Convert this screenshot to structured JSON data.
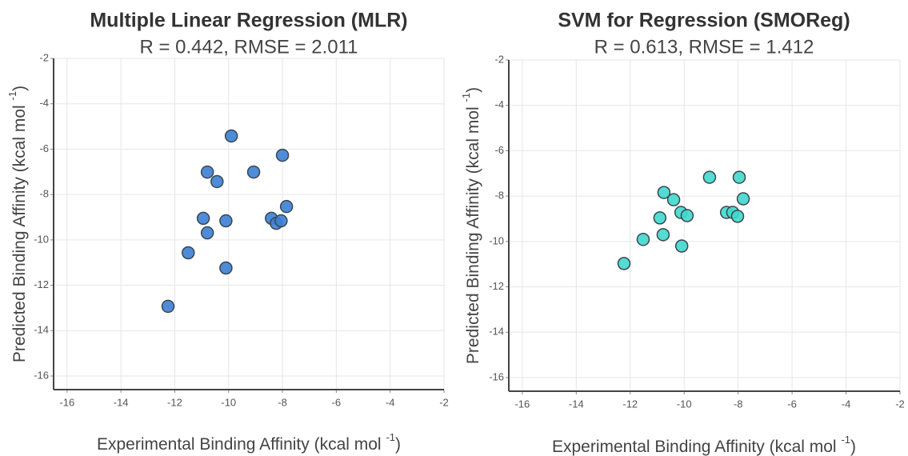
{
  "chart_data": [
    {
      "type": "scatter",
      "title": "Multiple Linear Regression (MLR)",
      "subtitle": "R = 0.442, RMSE = 2.011",
      "xlabel": [
        "Experimental Binding Affinity (kcal mol ",
        "-1",
        ")"
      ],
      "ylabel": [
        "Predicted Binding Affinity (kcal mol ",
        "-1",
        ")"
      ],
      "xlim": [
        -16.5,
        -2
      ],
      "ylim": [
        -16.6,
        -2
      ],
      "xticks": [
        -16,
        -14,
        -12,
        -10,
        -8,
        -6,
        -4,
        -2
      ],
      "yticks": [
        -16,
        -14,
        -12,
        -10,
        -8,
        -6,
        -4,
        -2
      ],
      "grid": true,
      "color": "#3b7fd4",
      "x": [
        -12.25,
        -11.5,
        -10.94,
        -10.79,
        -10.79,
        -10.43,
        -10.1,
        -10.1,
        -9.9,
        -9.07,
        -8.41,
        -8.23,
        -8.05,
        -8.0,
        -7.85
      ],
      "values": [
        -12.93,
        -10.57,
        -9.05,
        -9.69,
        -7.01,
        -7.43,
        -9.16,
        -11.24,
        -5.42,
        -7.01,
        -9.05,
        -9.27,
        -9.16,
        -6.27,
        -8.53
      ]
    },
    {
      "type": "scatter",
      "title": "SVM for Regression (SMOReg)",
      "subtitle": "R = 0.613, RMSE = 1.412",
      "xlabel": [
        "Experimental Binding Affinity (kcal mol ",
        "-1",
        ")"
      ],
      "ylabel": [
        "Predicted Binding Affinity (kcal mol ",
        "-1",
        ")"
      ],
      "xlim": [
        -16.5,
        -2
      ],
      "ylim": [
        -16.6,
        -2
      ],
      "xticks": [
        -16,
        -14,
        -12,
        -10,
        -8,
        -6,
        -4,
        -2
      ],
      "yticks": [
        -16,
        -14,
        -12,
        -10,
        -8,
        -6,
        -4,
        -2
      ],
      "grid": true,
      "color": "#40d8cc",
      "x": [
        -12.23,
        -11.52,
        -10.9,
        -10.78,
        -10.75,
        -10.39,
        -10.12,
        -10.09,
        -9.89,
        -9.06,
        -8.43,
        -8.2,
        -8.02,
        -7.96,
        -7.81
      ],
      "values": [
        -10.97,
        -9.91,
        -8.96,
        -9.7,
        -7.84,
        -8.16,
        -8.72,
        -10.2,
        -8.86,
        -7.17,
        -8.72,
        -8.72,
        -8.89,
        -7.17,
        -8.12
      ]
    }
  ]
}
